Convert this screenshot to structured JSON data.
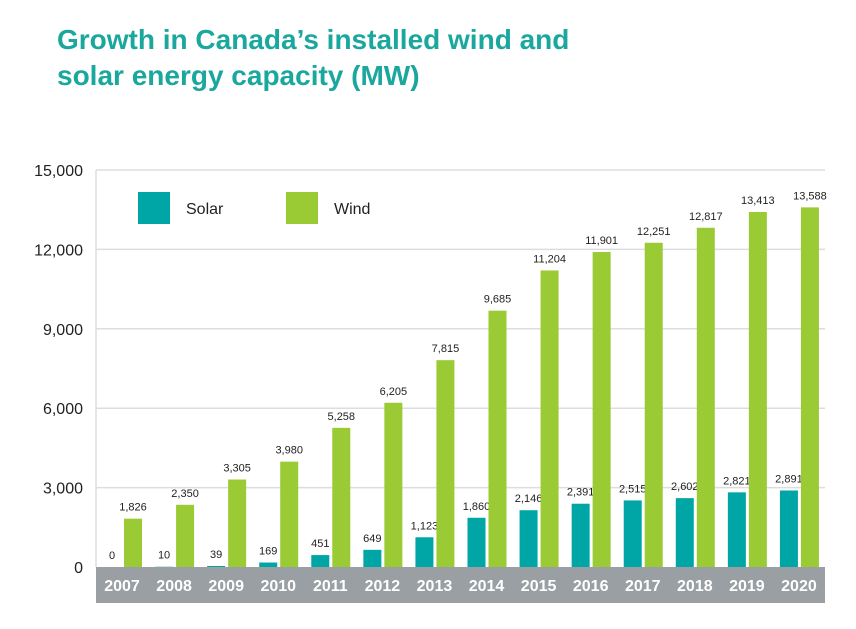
{
  "title_line1": "Growth in Canada’s installed wind and",
  "title_line2": "solar energy capacity (MW)",
  "chart_data": {
    "type": "bar",
    "title": "Growth in Canada’s installed wind and solar energy capacity (MW)",
    "xlabel": "",
    "ylabel": "",
    "ylim": [
      0,
      15000
    ],
    "yticks": [
      "0",
      "3,000",
      "6,000",
      "9,000",
      "12,000",
      "15,000"
    ],
    "ytick_values": [
      0,
      3000,
      6000,
      9000,
      12000,
      15000
    ],
    "grid": true,
    "legend_placement": "top-left",
    "categories": [
      "2007",
      "2008",
      "2009",
      "2010",
      "2011",
      "2012",
      "2013",
      "2014",
      "2015",
      "2016",
      "2017",
      "2018",
      "2019",
      "2020"
    ],
    "series": [
      {
        "name": "Solar",
        "color": "#00a6a6",
        "values": [
          0,
          10,
          39,
          169,
          451,
          649,
          1123,
          1860,
          2146,
          2391,
          2515,
          2602,
          2821,
          2891
        ],
        "labels": [
          "0",
          "10",
          "39",
          "169",
          "451",
          "649",
          "1,123",
          "1,860",
          "2,146",
          "2,391",
          "2,515",
          "2,602",
          "2,821",
          "2,891"
        ]
      },
      {
        "name": "Wind",
        "color": "#9aca34",
        "values": [
          1826,
          2350,
          3305,
          3980,
          5258,
          6205,
          7815,
          9685,
          11204,
          11901,
          12251,
          12817,
          13413,
          13588
        ],
        "labels": [
          "1,826",
          "2,350",
          "3,305",
          "3,980",
          "5,258",
          "6,205",
          "7,815",
          "9,685",
          "11,204",
          "11,901",
          "12,251",
          "12,817",
          "13,413",
          "13,588"
        ]
      }
    ],
    "axis_band_color": "#999fa2"
  }
}
